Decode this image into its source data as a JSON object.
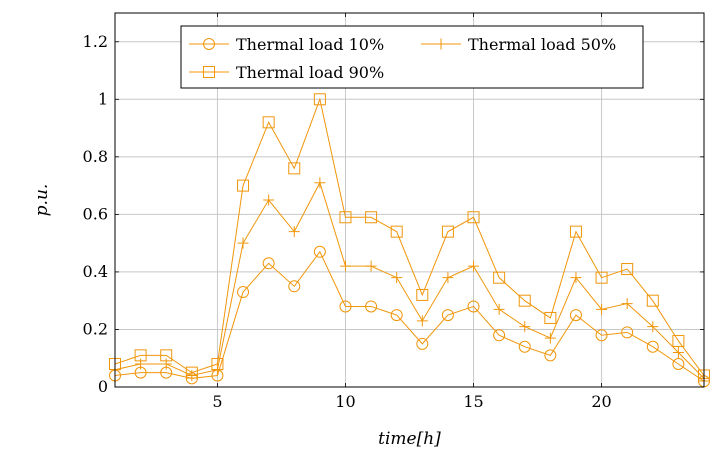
{
  "chart_data": {
    "type": "line",
    "title": "",
    "xlabel": "time[h]",
    "ylabel": "p.u.",
    "xlim": [
      1,
      24
    ],
    "ylim": [
      0,
      1.3
    ],
    "grid": true,
    "legend_position": "top-center",
    "x": [
      1,
      2,
      3,
      4,
      5,
      6,
      7,
      8,
      9,
      10,
      11,
      12,
      13,
      14,
      15,
      16,
      17,
      18,
      19,
      20,
      21,
      22,
      23,
      24
    ],
    "x_ticks": [
      5,
      10,
      15,
      20
    ],
    "y_ticks": [
      0,
      0.2,
      0.4,
      0.6,
      0.8,
      1,
      1.2
    ],
    "x_tick_labels": [
      "5",
      "10",
      "15",
      "20"
    ],
    "y_tick_labels": [
      "0",
      "0.2",
      "0.4",
      "0.6",
      "0.8",
      "1",
      "1.2"
    ],
    "color": "#f0960a",
    "series": [
      {
        "name": "Thermal load 10%",
        "marker": "circle",
        "values": [
          0.04,
          0.05,
          0.05,
          0.03,
          0.04,
          0.33,
          0.43,
          0.35,
          0.47,
          0.28,
          0.28,
          0.25,
          0.15,
          0.25,
          0.28,
          0.18,
          0.14,
          0.11,
          0.25,
          0.18,
          0.19,
          0.14,
          0.08,
          0.02
        ]
      },
      {
        "name": "Thermal load 50%",
        "marker": "plus",
        "values": [
          0.06,
          0.08,
          0.08,
          0.04,
          0.06,
          0.5,
          0.65,
          0.54,
          0.71,
          0.42,
          0.42,
          0.38,
          0.23,
          0.38,
          0.42,
          0.27,
          0.21,
          0.17,
          0.38,
          0.27,
          0.29,
          0.21,
          0.12,
          0.03
        ]
      },
      {
        "name": "Thermal load 90%",
        "marker": "square",
        "values": [
          0.08,
          0.11,
          0.11,
          0.05,
          0.08,
          0.7,
          0.92,
          0.76,
          1.0,
          0.59,
          0.59,
          0.54,
          0.32,
          0.54,
          0.59,
          0.38,
          0.3,
          0.24,
          0.54,
          0.38,
          0.41,
          0.3,
          0.16,
          0.04
        ]
      }
    ]
  }
}
